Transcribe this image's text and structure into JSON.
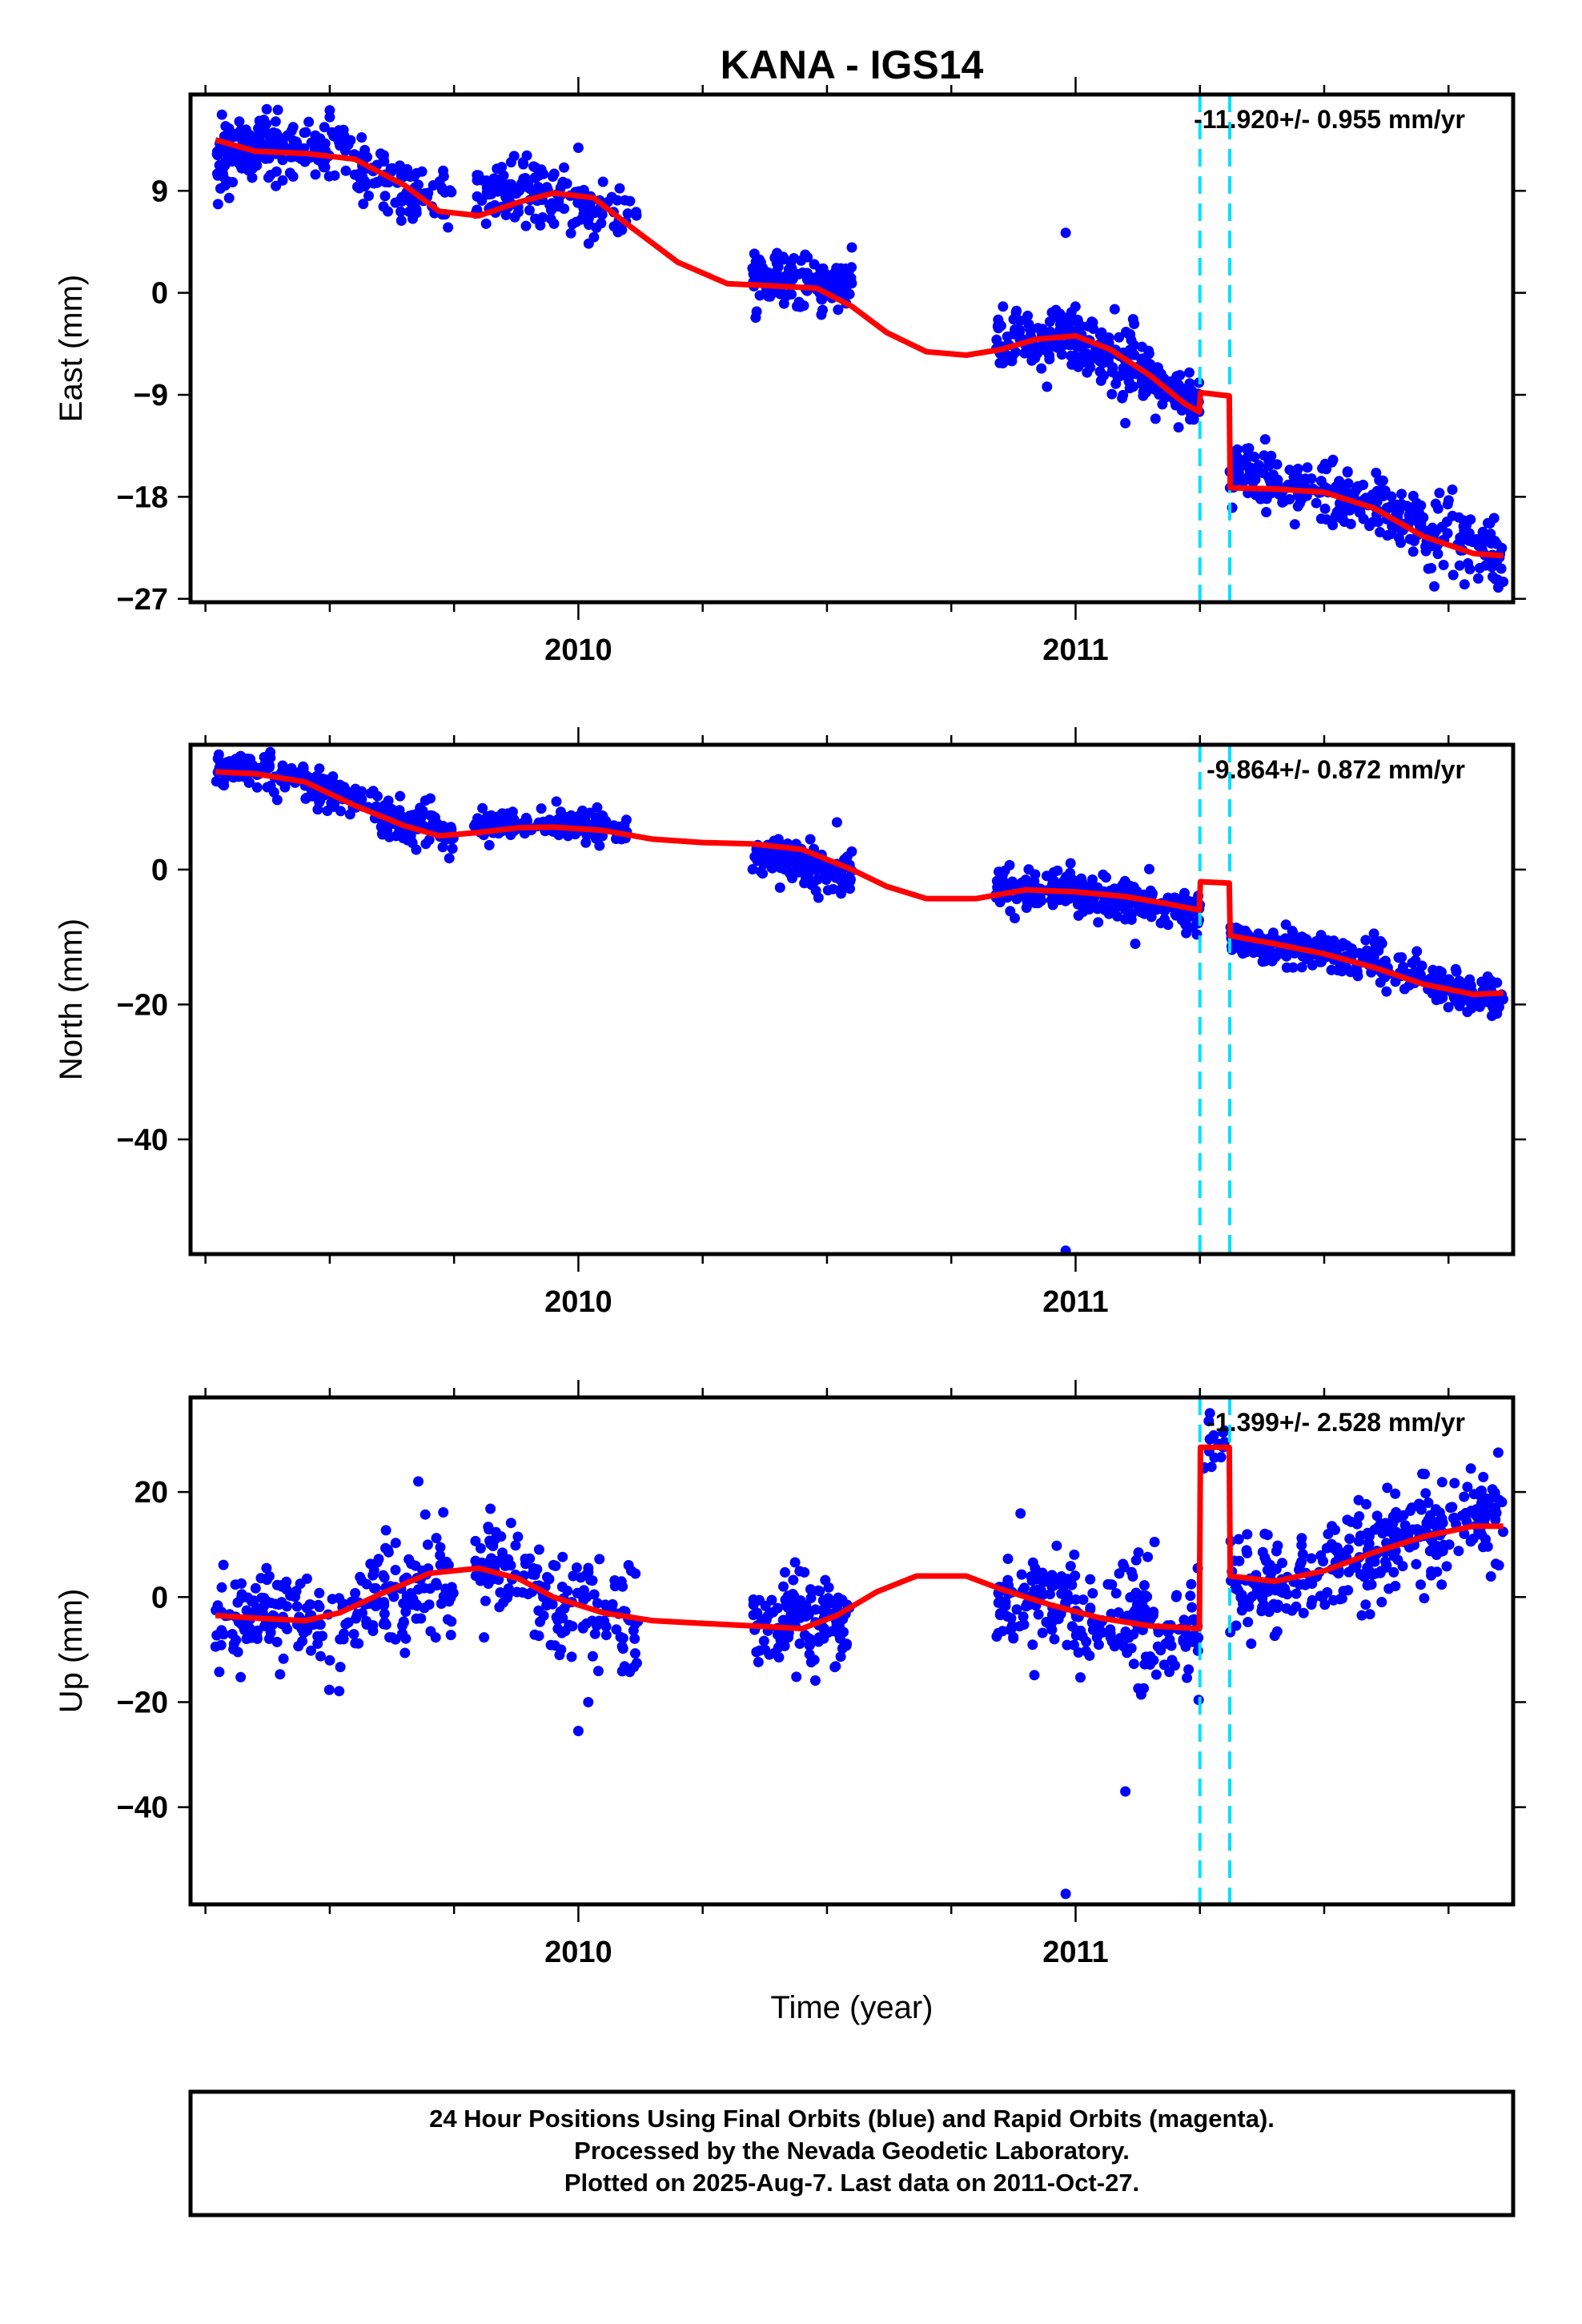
{
  "footer": {
    "lines": [
      "24 Hour Positions Using Final Orbits (blue) and Rapid Orbits (magenta).",
      "Processed by the Nevada Geodetic Laboratory.",
      "Plotted on 2025-Aug-7. Last data on 2011-Oct-27."
    ]
  },
  "colors": {
    "points": "#0000ff",
    "model": "#ff0000",
    "offsets": "#00e0ff",
    "frame": "#000000"
  },
  "chart_data": [
    {
      "type": "scatter",
      "title": "KANA - IGS14",
      "ylabel": "East (mm)",
      "xlabel": "",
      "rate_text": "-11.920+/- 0.955 mm/yr",
      "xlim": [
        2009.22,
        2011.88
      ],
      "ylim": [
        -27.3,
        17.5
      ],
      "yticks": [
        9,
        0,
        -9,
        -18,
        -27
      ],
      "xticks_major": [
        2010,
        2011
      ],
      "xticks_minor": [
        2009.25,
        2009.5,
        2009.75,
        2010.25,
        2010.5,
        2010.75,
        2011.25,
        2011.5,
        2011.75
      ],
      "offset_lines": [
        2011.25,
        2011.31
      ],
      "model": {
        "x": [
          2009.27,
          2009.35,
          2009.45,
          2009.55,
          2009.65,
          2009.72,
          2009.8,
          2009.88,
          2009.95,
          2010.03,
          2010.1,
          2010.2,
          2010.3,
          2010.4,
          2010.48,
          2010.55,
          2010.62,
          2010.7,
          2010.78,
          2010.85,
          2010.92,
          2011.0,
          2011.07,
          2011.15,
          2011.22,
          2011.249,
          2011.251,
          2011.309,
          2011.311,
          2011.4,
          2011.5,
          2011.6,
          2011.7,
          2011.8,
          2011.86
        ],
        "y": [
          13.5,
          12.5,
          12.3,
          11.8,
          9.5,
          7.2,
          6.8,
          8.0,
          8.8,
          8.4,
          6.0,
          2.7,
          0.8,
          0.6,
          0.4,
          -1.2,
          -3.5,
          -5.2,
          -5.5,
          -5.0,
          -4.1,
          -3.8,
          -5.0,
          -7.3,
          -9.8,
          -10.5,
          -8.8,
          -9.1,
          -17.2,
          -17.3,
          -17.6,
          -19.0,
          -21.5,
          -23.0,
          -23.2
        ]
      },
      "clusters": [
        [
          2009.27,
          2009.4,
          11.8,
          13.5,
          1.5,
          110
        ],
        [
          2009.4,
          2009.55,
          12.3,
          12.0,
          1.3,
          70
        ],
        [
          2009.55,
          2009.68,
          11.0,
          8.5,
          1.4,
          80
        ],
        [
          2009.68,
          2009.75,
          8.5,
          7.5,
          1.3,
          20
        ],
        [
          2009.79,
          2009.92,
          8.5,
          9.5,
          1.3,
          80
        ],
        [
          2009.92,
          2010.05,
          9.0,
          7.0,
          1.3,
          70
        ],
        [
          2010.05,
          2010.12,
          7.0,
          6.0,
          1.2,
          15
        ],
        [
          2010.35,
          2010.55,
          1.5,
          0.7,
          1.1,
          140
        ],
        [
          2010.84,
          2011.0,
          -4.5,
          -4.0,
          1.4,
          110
        ],
        [
          2011.0,
          2011.13,
          -4.0,
          -6.5,
          1.5,
          90
        ],
        [
          2011.13,
          2011.25,
          -7.0,
          -10.5,
          1.3,
          90
        ],
        [
          2011.31,
          2011.45,
          -15.5,
          -17.3,
          1.4,
          90
        ],
        [
          2011.45,
          2011.62,
          -17.5,
          -18.5,
          1.5,
          100
        ],
        [
          2011.62,
          2011.86,
          -19.5,
          -24.0,
          1.5,
          140
        ]
      ],
      "extra_points": [
        [
          2009.5,
          15.5
        ],
        [
          2009.5,
          16.1
        ],
        [
          2010.0,
          12.8
        ],
        [
          2010.55,
          4.0
        ],
        [
          2010.98,
          5.3
        ],
        [
          2011.1,
          -11.5
        ],
        [
          2011.85,
          -26.0
        ],
        [
          2011.86,
          -25.5
        ]
      ]
    },
    {
      "type": "scatter",
      "title": "",
      "ylabel": "North (mm)",
      "xlabel": "",
      "rate_text": "-9.864+/- 0.872 mm/yr",
      "xlim": [
        2009.22,
        2011.88
      ],
      "ylim": [
        -57,
        18.5
      ],
      "yticks": [
        0,
        -20,
        -40
      ],
      "xticks_major": [
        2010,
        2011
      ],
      "xticks_minor": [
        2009.25,
        2009.5,
        2009.75,
        2010.25,
        2010.5,
        2010.75,
        2011.25,
        2011.5,
        2011.75
      ],
      "offset_lines": [
        2011.25,
        2011.31
      ],
      "model": {
        "x": [
          2009.27,
          2009.35,
          2009.45,
          2009.55,
          2009.65,
          2009.72,
          2009.8,
          2009.88,
          2009.95,
          2010.05,
          2010.15,
          2010.25,
          2010.35,
          2010.45,
          2010.55,
          2010.62,
          2010.7,
          2010.8,
          2010.9,
          2011.0,
          2011.1,
          2011.18,
          2011.249,
          2011.251,
          2011.309,
          2011.311,
          2011.4,
          2011.5,
          2011.6,
          2011.7,
          2011.8,
          2011.86
        ],
        "y": [
          14.5,
          14.2,
          13.0,
          9.5,
          6.5,
          5.0,
          5.5,
          6.2,
          6.3,
          5.8,
          4.5,
          4.0,
          3.8,
          3.0,
          0.0,
          -2.5,
          -4.3,
          -4.3,
          -3.0,
          -3.3,
          -4.0,
          -5.0,
          -6.0,
          -1.8,
          -2.0,
          -9.8,
          -11.0,
          -12.5,
          -14.5,
          -17.0,
          -18.5,
          -18.3
        ]
      },
      "clusters": [
        [
          2009.27,
          2009.45,
          15.0,
          14.0,
          1.2,
          110
        ],
        [
          2009.45,
          2009.6,
          13.0,
          9.0,
          1.3,
          80
        ],
        [
          2009.6,
          2009.75,
          8.0,
          5.5,
          1.5,
          100
        ],
        [
          2009.79,
          2009.92,
          7.0,
          7.0,
          1.0,
          70
        ],
        [
          2009.92,
          2010.1,
          7.0,
          6.0,
          1.2,
          90
        ],
        [
          2010.35,
          2010.55,
          2.0,
          -0.5,
          1.5,
          130
        ],
        [
          2010.84,
          2011.0,
          -3.0,
          -3.0,
          1.5,
          100
        ],
        [
          2011.0,
          2011.25,
          -3.5,
          -6.5,
          1.5,
          160
        ],
        [
          2011.31,
          2011.5,
          -10.5,
          -12.0,
          1.3,
          120
        ],
        [
          2011.5,
          2011.7,
          -12.5,
          -15.5,
          1.5,
          100
        ],
        [
          2011.7,
          2011.86,
          -17.0,
          -19.5,
          1.4,
          100
        ]
      ],
      "extra_points": [
        [
          2010.52,
          7.0
        ],
        [
          2010.98,
          -56.5
        ],
        [
          2011.12,
          -11.0
        ],
        [
          2011.6,
          -9.5
        ]
      ]
    },
    {
      "type": "scatter",
      "title": "",
      "ylabel": "Up (mm)",
      "xlabel": "Time (year)",
      "rate_text": "-1.399+/- 2.528 mm/yr",
      "xlim": [
        2009.22,
        2011.88
      ],
      "ylim": [
        -58.5,
        38
      ],
      "yticks": [
        20,
        0,
        -20,
        -40
      ],
      "xticks_major": [
        2010,
        2011
      ],
      "xticks_minor": [
        2009.25,
        2009.5,
        2009.75,
        2010.25,
        2010.5,
        2010.75,
        2011.25,
        2011.5,
        2011.75
      ],
      "offset_lines": [
        2011.25,
        2011.31
      ],
      "model": {
        "x": [
          2009.27,
          2009.35,
          2009.45,
          2009.52,
          2009.6,
          2009.7,
          2009.8,
          2009.88,
          2009.95,
          2010.05,
          2010.15,
          2010.25,
          2010.35,
          2010.45,
          2010.52,
          2010.6,
          2010.68,
          2010.78,
          2010.85,
          2010.95,
          2011.05,
          2011.15,
          2011.249,
          2011.251,
          2011.309,
          2011.311,
          2011.4,
          2011.5,
          2011.6,
          2011.7,
          2011.8,
          2011.86
        ],
        "y": [
          -3.5,
          -4.0,
          -4.5,
          -3.0,
          0.5,
          4.5,
          5.5,
          3.5,
          0.0,
          -3.0,
          -4.5,
          -5.0,
          -5.5,
          -6.0,
          -3.5,
          1.0,
          4.0,
          4.0,
          1.5,
          -1.5,
          -4.0,
          -5.5,
          -6.0,
          28.5,
          28.5,
          4.0,
          3.0,
          5.0,
          8.5,
          11.5,
          13.5,
          13.5
        ]
      },
      "clusters": [
        [
          2009.27,
          2009.55,
          -4.0,
          -4.0,
          4.5,
          140
        ],
        [
          2009.55,
          2009.75,
          -2.0,
          3.0,
          5.5,
          110
        ],
        [
          2009.79,
          2009.92,
          7.0,
          3.0,
          4.5,
          70
        ],
        [
          2009.92,
          2010.12,
          0.0,
          -5.0,
          5.5,
          100
        ],
        [
          2010.35,
          2010.55,
          -5.0,
          -4.0,
          4.5,
          130
        ],
        [
          2010.84,
          2011.0,
          0.0,
          -2.0,
          5.0,
          100
        ],
        [
          2011.0,
          2011.25,
          -4.0,
          -7.0,
          5.5,
          150
        ],
        [
          2011.25,
          2011.3,
          28.0,
          28.0,
          3.0,
          15
        ],
        [
          2011.31,
          2011.45,
          1.0,
          3.0,
          5.0,
          80
        ],
        [
          2011.45,
          2011.62,
          4.0,
          8.0,
          4.5,
          100
        ],
        [
          2011.62,
          2011.86,
          10.0,
          16.0,
          4.5,
          140
        ]
      ],
      "extra_points": [
        [
          2010.0,
          -25.5
        ],
        [
          2011.1,
          -37.0
        ],
        [
          2010.98,
          -56.5
        ],
        [
          2011.27,
          35.0
        ],
        [
          2011.85,
          27.5
        ],
        [
          2010.02,
          -20.0
        ]
      ]
    }
  ]
}
